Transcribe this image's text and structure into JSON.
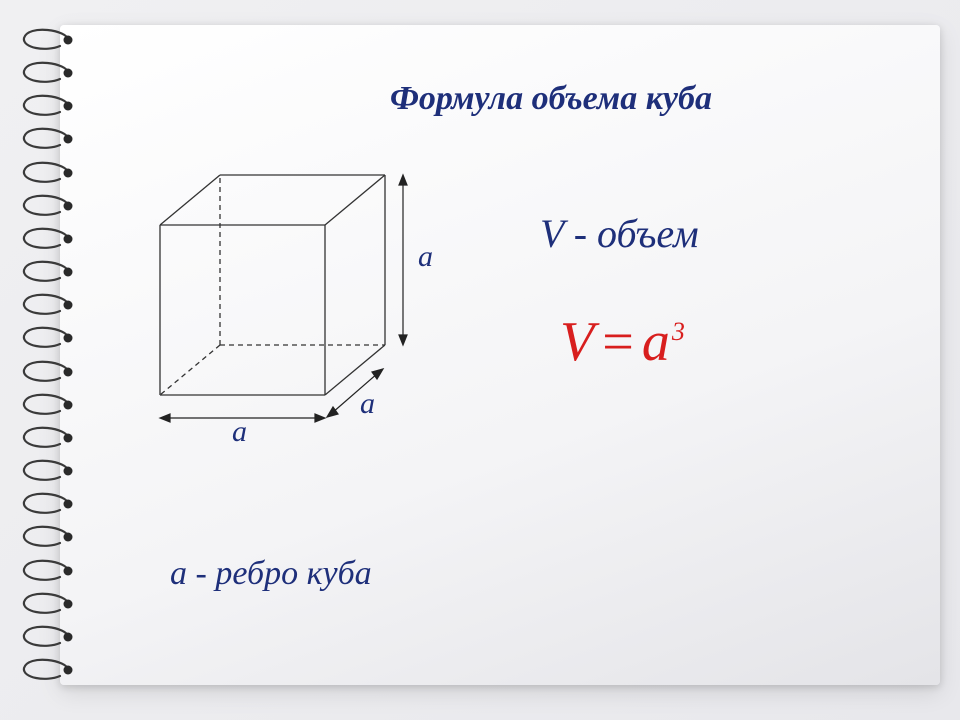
{
  "title": "Формула объема куба",
  "volume_label": {
    "symbol": "V",
    "dash": "-",
    "word": "объем"
  },
  "formula": {
    "lhs": "V",
    "eq": "=",
    "base": "a",
    "exp": "3"
  },
  "edge_label": {
    "symbol": "а",
    "dash": "-",
    "word": "ребро куба"
  },
  "cube": {
    "label": "а",
    "diagram": {
      "stroke": "#333333",
      "stroke_width": 1.3,
      "dash_pattern": "5,4",
      "arrow_stroke": "#222222",
      "label_color": "#1e2f7a"
    }
  },
  "colors": {
    "title": "#1e2f7a",
    "formula": "#d81e1e",
    "page_bg_start": "#ffffff",
    "page_bg_end": "#e4e4e8",
    "body_bg_start": "#f0f0f2",
    "body_bg_end": "#e8e8ec"
  },
  "spiral": {
    "count": 20,
    "ring_stroke": "#3a3a3a",
    "ring_fill": "none",
    "hole_fill": "#2a2a2a"
  },
  "fonts": {
    "title_size": 34,
    "label_size": 30,
    "volume_line_size": 40,
    "formula_size": 56,
    "formula_exp_size": 26,
    "edge_line_size": 34
  }
}
